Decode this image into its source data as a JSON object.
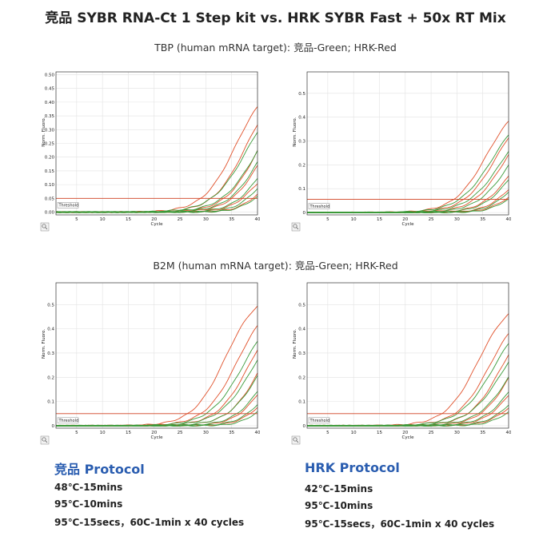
{
  "title": "竞品 SYBR RNA-Ct 1 Step kit vs. HRK SYBR Fast + 50x RT Mix",
  "sections": [
    {
      "title": "TBP (human mRNA target): 竞品-Green; HRK-Red"
    },
    {
      "title": "B2M (human mRNA target): 竞品-Green; HRK-Red"
    }
  ],
  "colors": {
    "green": "#3a9a3a",
    "red": "#e0502a",
    "threshold": "#d04020",
    "protocol_title": "#2a5db0"
  },
  "chart_data": [
    {
      "type": "line",
      "id": "tbp-left",
      "xlabel": "Cycle",
      "ylabel": "Norm. Fluoro.",
      "xlim": [
        1,
        40
      ],
      "ylim": [
        -0.01,
        0.51
      ],
      "xticks": [
        5,
        10,
        15,
        20,
        25,
        30,
        35,
        40
      ],
      "yticks": [
        0.0,
        0.05,
        0.1,
        0.15,
        0.2,
        0.25,
        0.3,
        0.35,
        0.4,
        0.45,
        0.5
      ],
      "ytick_labels": [
        "0.00",
        "0.05",
        "0.10",
        "0.15",
        "0.20",
        "0.25",
        "0.30",
        "0.35",
        "0.40",
        "0.45",
        "0.50"
      ],
      "threshold": 0.05,
      "threshold_label": "Threshold",
      "grid": true,
      "series": [
        {
          "color": "red",
          "values": [
            {
              "ct": 29.0,
              "max": 0.48,
              "k": 0.32
            },
            {
              "ct": 31.0,
              "max": 0.47,
              "k": 0.32
            },
            {
              "ct": 33.5,
              "max": 0.44,
              "k": 0.32
            },
            {
              "ct": 35.0,
              "max": 0.36,
              "k": 0.34
            },
            {
              "ct": 37.0,
              "max": 0.2,
              "k": 0.4
            },
            {
              "ct": 39.0,
              "max": 0.14,
              "k": 0.45
            }
          ]
        },
        {
          "color": "green",
          "values": [
            {
              "ct": 31.0,
              "max": 0.45,
              "k": 0.3
            },
            {
              "ct": 33.0,
              "max": 0.43,
              "k": 0.3
            },
            {
              "ct": 34.5,
              "max": 0.4,
              "k": 0.32
            },
            {
              "ct": 36.5,
              "max": 0.3,
              "k": 0.36
            },
            {
              "ct": 38.0,
              "max": 0.2,
              "k": 0.42
            },
            {
              "ct": 39.5,
              "max": 0.1,
              "k": 0.5
            }
          ]
        }
      ]
    },
    {
      "type": "line",
      "id": "tbp-right",
      "xlabel": "Cycle",
      "ylabel": "Norm. Fluoro.",
      "xlim": [
        1,
        40
      ],
      "ylim": [
        -0.01,
        0.59
      ],
      "xticks": [
        5,
        10,
        15,
        20,
        25,
        30,
        35,
        40
      ],
      "yticks": [
        0,
        0.1,
        0.2,
        0.3,
        0.4,
        0.5
      ],
      "ytick_labels": [
        "0",
        "0.1",
        "0.2",
        "0.3",
        "0.4",
        "0.5"
      ],
      "threshold": 0.055,
      "threshold_label": "Threshold",
      "grid": true,
      "series": [
        {
          "color": "red",
          "values": [
            {
              "ct": 29.0,
              "max": 0.48,
              "k": 0.32
            },
            {
              "ct": 31.0,
              "max": 0.46,
              "k": 0.32
            },
            {
              "ct": 33.0,
              "max": 0.42,
              "k": 0.33
            },
            {
              "ct": 35.5,
              "max": 0.33,
              "k": 0.35
            },
            {
              "ct": 37.5,
              "max": 0.22,
              "k": 0.4
            },
            {
              "ct": 39.0,
              "max": 0.12,
              "k": 0.45
            }
          ]
        },
        {
          "color": "green",
          "values": [
            {
              "ct": 30.0,
              "max": 0.46,
              "k": 0.3
            },
            {
              "ct": 32.0,
              "max": 0.44,
              "k": 0.3
            },
            {
              "ct": 34.0,
              "max": 0.4,
              "k": 0.32
            },
            {
              "ct": 36.0,
              "max": 0.3,
              "k": 0.36
            },
            {
              "ct": 38.0,
              "max": 0.2,
              "k": 0.42
            },
            {
              "ct": 39.5,
              "max": 0.1,
              "k": 0.5
            }
          ]
        }
      ]
    },
    {
      "type": "line",
      "id": "b2m-left",
      "xlabel": "Cycle",
      "ylabel": "Norm. Fluoro.",
      "xlim": [
        1,
        40
      ],
      "ylim": [
        -0.01,
        0.59
      ],
      "xticks": [
        5,
        10,
        15,
        20,
        25,
        30,
        35,
        40
      ],
      "yticks": [
        0,
        0.1,
        0.2,
        0.3,
        0.4,
        0.5
      ],
      "ytick_labels": [
        "0",
        "0.1",
        "0.2",
        "0.3",
        "0.4",
        "0.5"
      ],
      "threshold": 0.05,
      "threshold_label": "Threshold",
      "grid": true,
      "series": [
        {
          "color": "red",
          "values": [
            {
              "ct": 26.5,
              "max": 0.56,
              "k": 0.32
            },
            {
              "ct": 29.0,
              "max": 0.53,
              "k": 0.32
            },
            {
              "ct": 31.5,
              "max": 0.5,
              "k": 0.32
            },
            {
              "ct": 34.0,
              "max": 0.46,
              "k": 0.33
            },
            {
              "ct": 36.5,
              "max": 0.32,
              "k": 0.37
            },
            {
              "ct": 38.5,
              "max": 0.18,
              "k": 0.43
            }
          ]
        },
        {
          "color": "green",
          "values": [
            {
              "ct": 30.0,
              "max": 0.51,
              "k": 0.3
            },
            {
              "ct": 32.0,
              "max": 0.49,
              "k": 0.3
            },
            {
              "ct": 34.0,
              "max": 0.44,
              "k": 0.32
            },
            {
              "ct": 36.0,
              "max": 0.36,
              "k": 0.35
            },
            {
              "ct": 38.0,
              "max": 0.24,
              "k": 0.4
            },
            {
              "ct": 39.5,
              "max": 0.12,
              "k": 0.5
            }
          ]
        }
      ]
    },
    {
      "type": "line",
      "id": "b2m-right",
      "xlabel": "Cycle",
      "ylabel": "Norm. Fluoro.",
      "xlim": [
        1,
        40
      ],
      "ylim": [
        -0.01,
        0.59
      ],
      "xticks": [
        5,
        10,
        15,
        20,
        25,
        30,
        35,
        40
      ],
      "yticks": [
        0,
        0.1,
        0.2,
        0.3,
        0.4,
        0.5
      ],
      "ytick_labels": [
        "0",
        "0.1",
        "0.2",
        "0.3",
        "0.4",
        "0.5"
      ],
      "threshold": 0.05,
      "threshold_label": "Threshold",
      "grid": true,
      "series": [
        {
          "color": "red",
          "values": [
            {
              "ct": 27.0,
              "max": 0.53,
              "k": 0.32
            },
            {
              "ct": 29.5,
              "max": 0.5,
              "k": 0.32
            },
            {
              "ct": 32.0,
              "max": 0.47,
              "k": 0.33
            },
            {
              "ct": 34.5,
              "max": 0.42,
              "k": 0.34
            },
            {
              "ct": 36.5,
              "max": 0.28,
              "k": 0.38
            },
            {
              "ct": 38.5,
              "max": 0.15,
              "k": 0.44
            }
          ]
        },
        {
          "color": "green",
          "values": [
            {
              "ct": 30.0,
              "max": 0.49,
              "k": 0.3
            },
            {
              "ct": 32.0,
              "max": 0.46,
              "k": 0.3
            },
            {
              "ct": 34.0,
              "max": 0.41,
              "k": 0.32
            },
            {
              "ct": 36.0,
              "max": 0.34,
              "k": 0.35
            },
            {
              "ct": 38.0,
              "max": 0.22,
              "k": 0.4
            },
            {
              "ct": 39.5,
              "max": 0.1,
              "k": 0.5
            }
          ]
        }
      ]
    }
  ],
  "protocols": [
    {
      "title": "竞品 Protocol",
      "lines": [
        "48℃-15mins",
        "95℃-10mins",
        "95℃-15secs，60C-1min x 40 cycles"
      ]
    },
    {
      "title": "HRK Protocol",
      "lines": [
        "42℃-15mins",
        "95℃-10mins",
        "95℃-15secs，60C-1min x 40 cycles"
      ]
    }
  ]
}
